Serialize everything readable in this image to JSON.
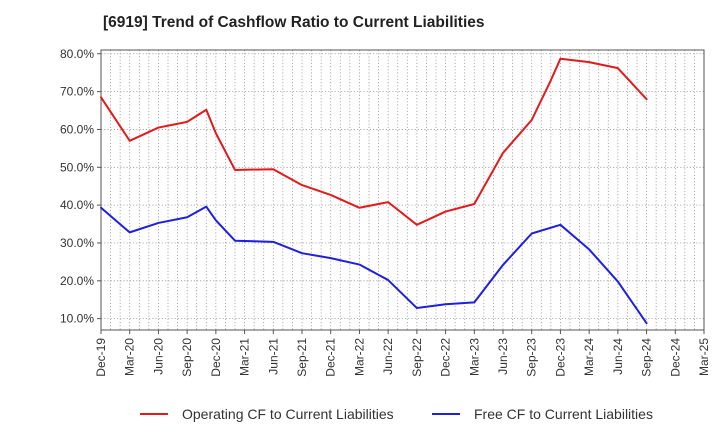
{
  "chart_data": {
    "type": "line",
    "title": "[6919]  Trend of Cashflow Ratio to Current Liabilities",
    "xlabel": "",
    "ylabel": "",
    "ylim": [
      7,
      81
    ],
    "yticks": [
      10,
      20,
      30,
      40,
      50,
      60,
      70,
      80
    ],
    "ytick_labels": [
      "10.0%",
      "20.0%",
      "30.0%",
      "40.0%",
      "50.0%",
      "60.0%",
      "70.0%",
      "80.0%"
    ],
    "x_tick_labels": [
      "Dec-19",
      "Mar-20",
      "Jun-20",
      "Sep-20",
      "Dec-20",
      "Mar-21",
      "Jun-21",
      "Sep-21",
      "Dec-21",
      "Mar-22",
      "Jun-22",
      "Sep-22",
      "Dec-22",
      "Mar-23",
      "Jun-23",
      "Sep-23",
      "Dec-23",
      "Mar-24",
      "Jun-24",
      "Sep-24",
      "Dec-24",
      "Mar-25"
    ],
    "grid": true,
    "legend_position": "bottom",
    "series": [
      {
        "name": "Operating CF to Current Liabilities",
        "color": "#e31a1c",
        "points": [
          [
            "Dec-19",
            68.5
          ],
          [
            "Mar-20",
            57.0
          ],
          [
            "Jun-20",
            60.5
          ],
          [
            "Sep-20",
            62.0
          ],
          [
            "Nov-20",
            65.2
          ],
          [
            "Dec-20",
            59.0
          ],
          [
            "Feb-21",
            49.3
          ],
          [
            "Jun-21",
            49.5
          ],
          [
            "Sep-21",
            45.3
          ],
          [
            "Dec-21",
            42.7
          ],
          [
            "Mar-22",
            39.3
          ],
          [
            "Jun-22",
            40.8
          ],
          [
            "Sep-22",
            34.8
          ],
          [
            "Dec-22",
            38.3
          ],
          [
            "Mar-23",
            40.3
          ],
          [
            "Jun-23",
            53.8
          ],
          [
            "Sep-23",
            62.5
          ],
          [
            "Nov-23",
            73.0
          ],
          [
            "Dec-23",
            78.7
          ],
          [
            "Mar-24",
            77.8
          ],
          [
            "Jun-24",
            76.2
          ],
          [
            "Sep-24",
            68.0
          ]
        ]
      },
      {
        "name": "Free CF to Current Liabilities",
        "color": "#1f1fe0",
        "points": [
          [
            "Dec-19",
            39.3
          ],
          [
            "Mar-20",
            32.8
          ],
          [
            "Jun-20",
            35.3
          ],
          [
            "Sep-20",
            36.8
          ],
          [
            "Nov-20",
            39.6
          ],
          [
            "Dec-20",
            36.0
          ],
          [
            "Feb-21",
            30.6
          ],
          [
            "Jun-21",
            30.3
          ],
          [
            "Sep-21",
            27.3
          ],
          [
            "Dec-21",
            26.0
          ],
          [
            "Mar-22",
            24.3
          ],
          [
            "Jun-22",
            20.2
          ],
          [
            "Sep-22",
            12.8
          ],
          [
            "Dec-22",
            13.8
          ],
          [
            "Mar-23",
            14.3
          ],
          [
            "Jun-23",
            24.2
          ],
          [
            "Sep-23",
            32.5
          ],
          [
            "Dec-23",
            34.8
          ],
          [
            "Mar-24",
            28.3
          ],
          [
            "Jun-24",
            19.8
          ],
          [
            "Sep-24",
            8.8
          ]
        ]
      }
    ]
  }
}
